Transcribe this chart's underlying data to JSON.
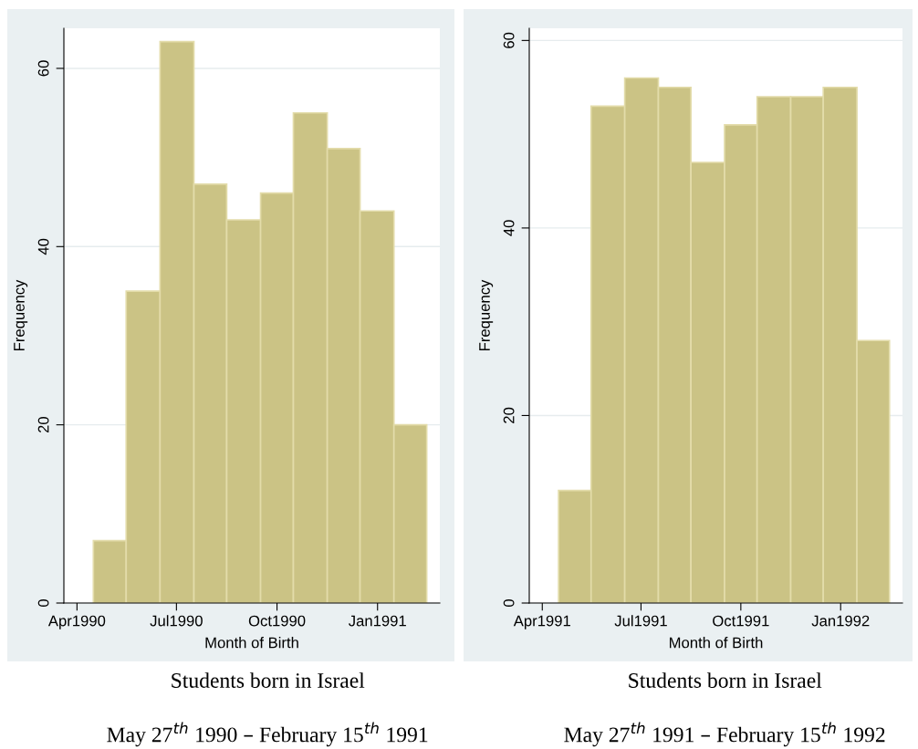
{
  "chart_data": [
    {
      "type": "histogram",
      "bins": [
        "1990-04-16",
        "1990-05-16",
        "1990-06-16",
        "1990-07-17",
        "1990-08-16",
        "1990-09-16",
        "1990-10-16",
        "1990-11-16",
        "1990-12-16",
        "1991-01-16",
        "1991-02-15"
      ],
      "values": [
        7,
        35,
        63,
        47,
        43,
        46,
        55,
        51,
        44,
        20
      ],
      "color": "#cbc385",
      "xlim": [
        "1990-03-20",
        "1991-02-27"
      ],
      "ylim": [
        0,
        64.5
      ],
      "xticks": [
        {
          "value": "1990-04-01",
          "label": "Apr1990"
        },
        {
          "value": "1990-07-01",
          "label": "Jul1990"
        },
        {
          "value": "1990-10-01",
          "label": "Oct1990"
        },
        {
          "value": "1991-01-01",
          "label": "Jan1991"
        }
      ],
      "yticks": [
        0,
        20,
        40,
        60
      ],
      "xlabel": "Month of Birth",
      "ylabel": "Frequency",
      "grid": "y",
      "annotations": [
        "Students born in Israel",
        "May 27$^{th}$ 1990 – February 15$^{th}$ 1991"
      ]
    },
    {
      "type": "histogram",
      "bins": [
        "1991-04-16",
        "1991-05-16",
        "1991-06-16",
        "1991-07-17",
        "1991-08-16",
        "1991-09-16",
        "1991-10-16",
        "1991-11-16",
        "1991-12-16",
        "1992-01-16",
        "1992-02-15"
      ],
      "values": [
        12,
        53,
        56,
        55,
        47,
        51,
        54,
        54,
        55,
        28
      ],
      "color": "#cbc385",
      "xlim": [
        "1991-03-20",
        "1992-02-27"
      ],
      "ylim": [
        0,
        61.3
      ],
      "xticks": [
        {
          "value": "1991-04-01",
          "label": "Apr1991"
        },
        {
          "value": "1991-07-01",
          "label": "Jul1991"
        },
        {
          "value": "1991-10-01",
          "label": "Oct1991"
        },
        {
          "value": "1992-01-01",
          "label": "Jan1992"
        }
      ],
      "yticks": [
        0,
        20,
        40,
        60
      ],
      "xlabel": "Month of Birth",
      "ylabel": "Frequency",
      "grid": "y",
      "annotations": [
        "Students born in Israel",
        "May 27$^{th}$ 1991 – February 15$^{th}$ 1992"
      ]
    }
  ]
}
